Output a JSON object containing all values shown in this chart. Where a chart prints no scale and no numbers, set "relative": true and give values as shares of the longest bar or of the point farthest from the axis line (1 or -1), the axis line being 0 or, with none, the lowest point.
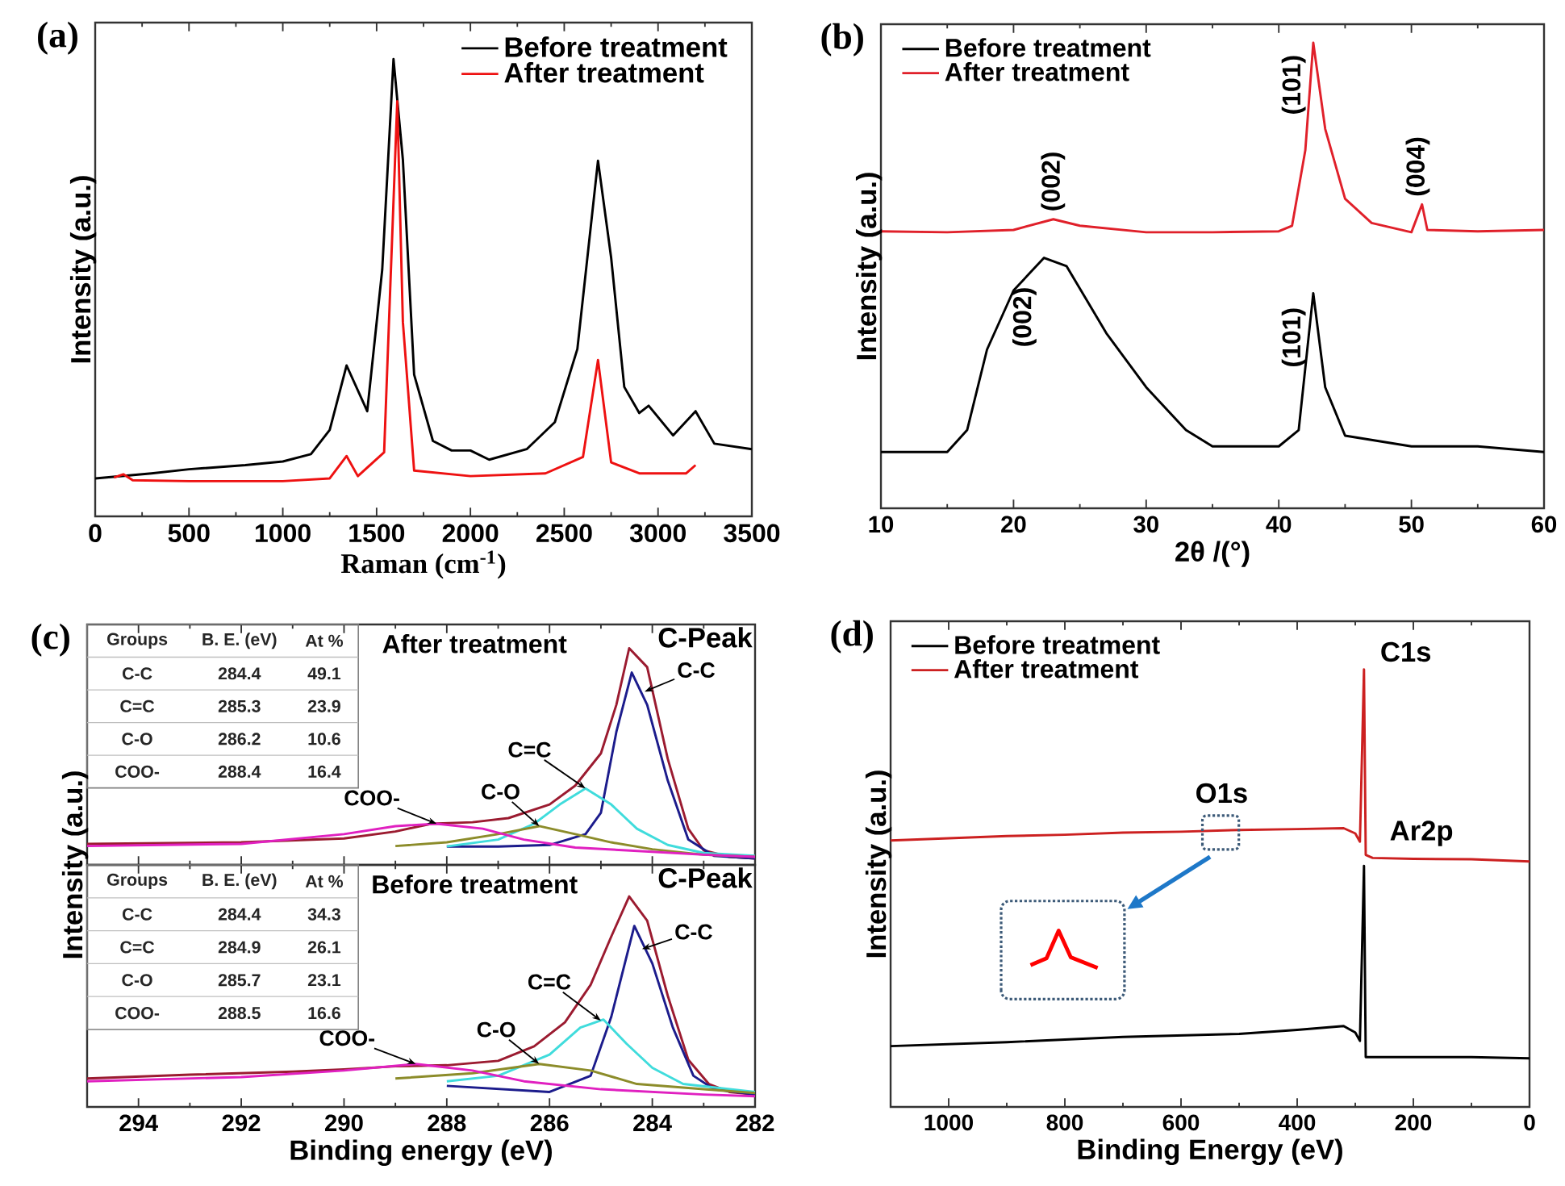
{
  "chart_data": [
    {
      "type": "line",
      "title": "(a)",
      "xlabel": "Raman (cm$^{-1}$)",
      "ylabel": "Intensity (a.u.)",
      "relative": true,
      "xlim": [
        0,
        3500
      ],
      "xticks": [
        0,
        500,
        1000,
        1500,
        2000,
        2500,
        3000,
        3500
      ],
      "legend": "top right",
      "series": [
        {
          "name": "Before treatment",
          "color": "#000000",
          "x": [
            0,
            300,
            500,
            800,
            1000,
            1150,
            1250,
            1340,
            1450,
            1530,
            1590,
            1640,
            1700,
            1800,
            1900,
            2000,
            2100,
            2300,
            2450,
            2570,
            2680,
            2750,
            2820,
            2900,
            2950,
            3080,
            3200,
            3300,
            3500
          ],
          "values": [
            0.083,
            0.094,
            0.103,
            0.112,
            0.12,
            0.136,
            0.189,
            0.33,
            0.23,
            0.54,
            1.0,
            0.78,
            0.31,
            0.165,
            0.144,
            0.144,
            0.124,
            0.147,
            0.206,
            0.366,
            0.778,
            0.566,
            0.283,
            0.226,
            0.242,
            0.177,
            0.23,
            0.159,
            0.147
          ]
        },
        {
          "name": "After treatment",
          "color": "#ee1111",
          "x": [
            100,
            150,
            200,
            500,
            1000,
            1250,
            1340,
            1400,
            1540,
            1570,
            1610,
            1640,
            1700,
            2000,
            2400,
            2600,
            2680,
            2750,
            2900,
            3150,
            3200
          ],
          "values": [
            0.085,
            0.092,
            0.079,
            0.077,
            0.077,
            0.083,
            0.132,
            0.088,
            0.14,
            0.47,
            0.908,
            0.425,
            0.1,
            0.088,
            0.094,
            0.13,
            0.342,
            0.118,
            0.094,
            0.094,
            0.112
          ]
        }
      ]
    },
    {
      "type": "line",
      "title": "(b)",
      "xlabel": "2θ /(°)",
      "ylabel": "Intensity (a.u.)",
      "relative": true,
      "xlim": [
        10,
        60
      ],
      "xticks": [
        10,
        20,
        30,
        40,
        50,
        60
      ],
      "legend": "top left",
      "series": [
        {
          "name": "Before treatment",
          "color": "#000000",
          "x": [
            10,
            15,
            16.5,
            18,
            20,
            22.3,
            24,
            27,
            30,
            33,
            35,
            40,
            41.5,
            42.6,
            43.5,
            45,
            50,
            55,
            60
          ],
          "values": [
            0.121,
            0.121,
            0.168,
            0.341,
            0.468,
            0.538,
            0.52,
            0.376,
            0.26,
            0.168,
            0.133,
            0.133,
            0.168,
            0.462,
            0.26,
            0.156,
            0.133,
            0.133,
            0.121
          ]
        },
        {
          "name": "After treatment",
          "color": "#e0202a",
          "x": [
            10,
            15,
            20,
            23,
            25,
            30,
            35,
            40,
            41,
            42,
            42.6,
            43.5,
            45,
            47,
            50,
            50.8,
            51.2,
            55,
            60
          ],
          "values": [
            0.595,
            0.593,
            0.598,
            0.621,
            0.607,
            0.593,
            0.593,
            0.595,
            0.607,
            0.769,
            1.0,
            0.815,
            0.665,
            0.613,
            0.593,
            0.653,
            0.598,
            0.595,
            0.598
          ]
        }
      ],
      "annotations": [
        {
          "text": "(002)",
          "x": 23.3,
          "y": 0.621
        },
        {
          "text": "(101)",
          "x": 42.6,
          "y": 1.0
        },
        {
          "text": "(004)",
          "x": 50.8,
          "y": 0.653
        },
        {
          "text": "(002)",
          "x": 22.3,
          "y": 0.538
        },
        {
          "text": "(101)",
          "x": 42.6,
          "y": 0.462
        }
      ]
    },
    {
      "type": "line",
      "title": "(c)",
      "subtitle": "After treatment",
      "relative": true,
      "xlim": [
        295,
        282
      ],
      "xticks": [
        294,
        292,
        290,
        288,
        286,
        284,
        282
      ],
      "tick_labels": false,
      "series": [
        {
          "color": "#9b1b30",
          "x": [
            295,
            292,
            290,
            289,
            288.3,
            287.5,
            286.8,
            286,
            285.5,
            285,
            284.7,
            284.45,
            284.1,
            283.7,
            283.3,
            283,
            282.5,
            282
          ],
          "values": [
            0.097,
            0.104,
            0.122,
            0.154,
            0.19,
            0.197,
            0.216,
            0.279,
            0.366,
            0.515,
            0.739,
            1.0,
            0.913,
            0.49,
            0.167,
            0.067,
            0.037,
            0.03
          ]
        },
        {
          "color": "#1c1c8c",
          "x": [
            288,
            287,
            286,
            285.3,
            285,
            284.7,
            284.4,
            284.1,
            283.7,
            283.3,
            282.8,
            282
          ],
          "values": [
            0.085,
            0.085,
            0.092,
            0.142,
            0.241,
            0.614,
            0.888,
            0.739,
            0.39,
            0.117,
            0.042,
            0.03
          ]
        },
        {
          "color": "#40dcdc",
          "x": [
            288,
            287,
            286.3,
            285.8,
            285.3,
            284.8,
            284.3,
            283.7,
            283,
            282
          ],
          "values": [
            0.085,
            0.117,
            0.19,
            0.279,
            0.353,
            0.279,
            0.167,
            0.092,
            0.055,
            0.042
          ]
        },
        {
          "color": "#8c8c2a",
          "x": [
            289,
            288,
            287,
            286.2,
            285.5,
            284.8,
            284,
            283,
            282
          ],
          "values": [
            0.087,
            0.104,
            0.142,
            0.179,
            0.142,
            0.104,
            0.072,
            0.047,
            0.037
          ]
        },
        {
          "color": "#e020c0",
          "x": [
            295,
            292,
            290,
            289,
            288.2,
            287.3,
            286.5,
            285.5,
            284.5,
            283,
            282
          ],
          "values": [
            0.087,
            0.097,
            0.142,
            0.179,
            0.19,
            0.167,
            0.117,
            0.08,
            0.067,
            0.047,
            0.037
          ]
        }
      ],
      "annotations": [
        "Groups",
        "B. E. (eV)",
        "At %",
        "C-C",
        "284.4",
        "49.1",
        "C=C",
        "285.3",
        "23.9",
        "C-O",
        "286.2",
        "10.6",
        "COO-",
        "288.4",
        "16.4",
        "C-Peak",
        {
          "text": "C-C",
          "x": 284.15,
          "y": 0.8
        },
        {
          "text": "C=C",
          "x": 285.3,
          "y": 0.353
        },
        {
          "text": "C-O",
          "x": 286.2,
          "y": 0.179
        },
        {
          "text": "COO-",
          "x": 288.2,
          "y": 0.19
        }
      ]
    },
    {
      "type": "line",
      "subtitle": "Before treatment",
      "xlabel": "Binding energy (eV)",
      "ylabel": "Intensity (a.u.)",
      "relative": true,
      "xlim": [
        295,
        282
      ],
      "xticks": [
        294,
        292,
        290,
        288,
        286,
        284,
        282
      ],
      "tick_labels": "x",
      "series": [
        {
          "color": "#9b1b30",
          "x": [
            295,
            293,
            291,
            290,
            289,
            288,
            287,
            286.3,
            285.7,
            285.2,
            284.8,
            284.45,
            284.1,
            283.7,
            283.3,
            282.9,
            282.5,
            282
          ],
          "values": [
            0.135,
            0.153,
            0.168,
            0.178,
            0.193,
            0.198,
            0.219,
            0.288,
            0.402,
            0.58,
            0.809,
            1.0,
            0.885,
            0.529,
            0.224,
            0.109,
            0.071,
            0.059
          ]
        },
        {
          "color": "#1c1c8c",
          "x": [
            288,
            286,
            285.2,
            284.8,
            284.35,
            284,
            283.6,
            283.2,
            282.8,
            282
          ],
          "values": [
            0.1,
            0.071,
            0.148,
            0.427,
            0.86,
            0.682,
            0.377,
            0.148,
            0.084,
            0.059
          ]
        },
        {
          "color": "#40dcdc",
          "x": [
            288,
            287,
            286,
            285.4,
            284.95,
            284.5,
            284,
            283.4,
            282
          ],
          "values": [
            0.122,
            0.148,
            0.249,
            0.377,
            0.415,
            0.3,
            0.186,
            0.109,
            0.071
          ]
        },
        {
          "color": "#8c8c2a",
          "x": [
            289,
            287.5,
            286.2,
            285.2,
            284.3,
            283,
            282
          ],
          "values": [
            0.135,
            0.16,
            0.204,
            0.173,
            0.109,
            0.084,
            0.066
          ]
        },
        {
          "color": "#e020c0",
          "x": [
            295,
            292,
            290,
            288.6,
            287.5,
            286.5,
            285,
            283,
            282
          ],
          "values": [
            0.122,
            0.142,
            0.173,
            0.204,
            0.173,
            0.122,
            0.084,
            0.059,
            0.051
          ]
        }
      ],
      "annotations": [
        "Groups",
        "B. E. (eV)",
        "At %",
        "C-C",
        "284.4",
        "34.3",
        "C=C",
        "284.9",
        "26.1",
        "C-O",
        "285.7",
        "23.1",
        "COO-",
        "288.5",
        "16.6",
        "C-Peak",
        {
          "text": "C-C",
          "x": 284.2,
          "y": 0.75
        },
        {
          "text": "C=C",
          "x": 285,
          "y": 0.41
        },
        {
          "text": "C-O",
          "x": 286.2,
          "y": 0.204
        },
        {
          "text": "COO-",
          "x": 288.6,
          "y": 0.204
        }
      ]
    },
    {
      "type": "line",
      "title": "(d)",
      "xlabel": "Binding Energy (eV)",
      "ylabel": "Intensity (a.u.)",
      "relative": true,
      "xlim": [
        1100,
        0
      ],
      "xticks": [
        1000,
        800,
        600,
        400,
        200,
        0
      ],
      "legend": "top left",
      "series": [
        {
          "name": "Before treatment",
          "color": "#000000",
          "x": [
            1100,
            900,
            700,
            500,
            400,
            320,
            300,
            292,
            285,
            282,
            270,
            100,
            0
          ],
          "values": [
            0.139,
            0.148,
            0.16,
            0.167,
            0.176,
            0.185,
            0.17,
            0.151,
            0.551,
            0.114,
            0.114,
            0.114,
            0.111
          ]
        },
        {
          "name": "After treatment",
          "color": "#cc2020",
          "x": [
            1100,
            900,
            800,
            700,
            600,
            500,
            400,
            320,
            300,
            292,
            285,
            282,
            270,
            200,
            100,
            0
          ],
          "values": [
            0.609,
            0.619,
            0.622,
            0.627,
            0.629,
            0.633,
            0.635,
            0.637,
            0.625,
            0.606,
            1.0,
            0.576,
            0.569,
            0.567,
            0.566,
            0.561
          ]
        }
      ],
      "annotations": [
        {
          "text": "C1s",
          "x": 285,
          "y": 1.0
        },
        {
          "text": "O1s",
          "x": 530,
          "y": 0.633
        },
        {
          "text": "Ar2p",
          "x": 265,
          "y": 0.569
        }
      ]
    }
  ]
}
